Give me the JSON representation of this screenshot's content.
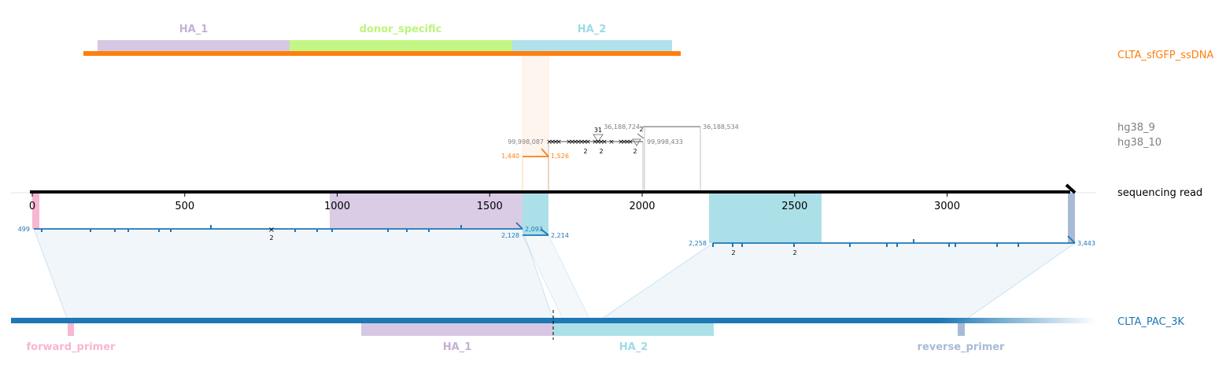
{
  "row_labels": {
    "donor": "CLTA_sfGFP_ssDNA",
    "hg38_9": "hg38_9",
    "hg38_10": "hg38_10",
    "read": "sequencing read",
    "target": "CLTA_PAC_3K"
  },
  "colors": {
    "donor": "#ff7f0e",
    "target": "#1f77b4",
    "genomic": "#7f7f7f",
    "read": "#000000",
    "HA_1": "#c5b0d5",
    "HA_2": "#9edae5",
    "donor_specific": "#bcf57a",
    "forward_primer": "#f7b6d2",
    "reverse_primer": "#a8bbd6"
  },
  "donor_features": [
    {
      "name": "HA_1"
    },
    {
      "name": "donor_specific"
    },
    {
      "name": "HA_2"
    }
  ],
  "target_features": [
    {
      "name": "forward_primer"
    },
    {
      "name": "HA_1"
    },
    {
      "name": "HA_2"
    },
    {
      "name": "reverse_primer"
    }
  ],
  "read_axis_ticks": [
    "0",
    "500",
    "1000",
    "1500",
    "2000",
    "2500",
    "3000"
  ],
  "alignments": {
    "target_left": {
      "read_start": "499",
      "read_end": "2,093",
      "ref_end": "2,128",
      "deletion_count": "2"
    },
    "target_right": {
      "read_start": "2,214",
      "ref_start": "2,258",
      "read_end": "3,443",
      "count_a": "2",
      "count_b": "2"
    },
    "donor": {
      "start": "1,440",
      "end": "1,526"
    },
    "hg38_10": {
      "start": "99,998,087",
      "end": "99,998,433",
      "count_a": "2",
      "count_b": "2",
      "count_c": "2",
      "count_d": "2"
    },
    "hg38_9": {
      "start": "36,188,724",
      "end": "36,188,534",
      "count_a": "31",
      "count_b": "2"
    }
  }
}
